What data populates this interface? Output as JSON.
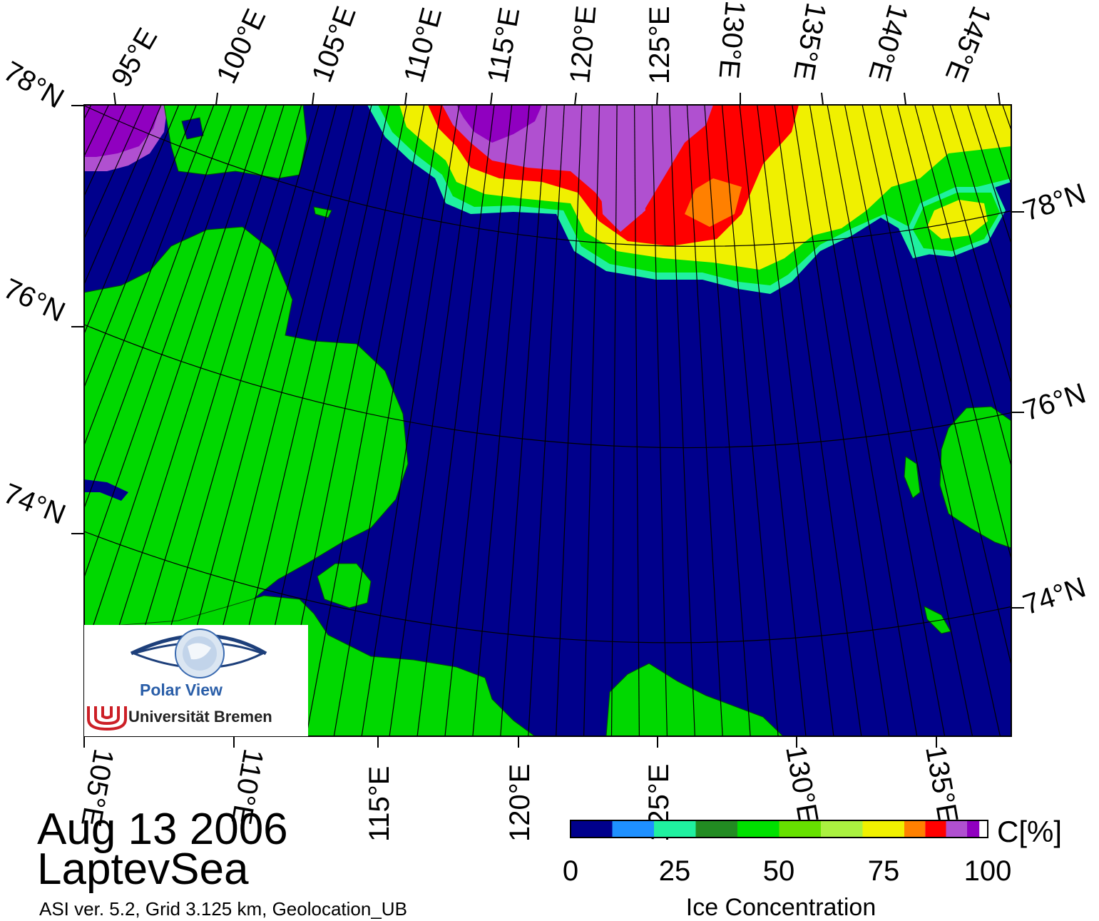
{
  "map": {
    "top_lon_labels": [
      "95°E",
      "100°E",
      "105°E",
      "110°E",
      "115°E",
      "120°E",
      "125°E",
      "130°E",
      "135°E",
      "140°E",
      "145°E"
    ],
    "bottom_lon_labels": [
      "105°E",
      "110°E",
      "115°E",
      "120°E",
      "125°E",
      "130°E",
      "135°E"
    ],
    "left_lat_labels": [
      "78°N",
      "76°N",
      "74°N"
    ],
    "right_lat_labels": [
      "78°N",
      "76°N",
      "74°N"
    ],
    "colors": {
      "ocean": "#00008c",
      "land": "#00d800",
      "grid": "#000000"
    }
  },
  "annotation": {
    "date": "Aug 13 2006",
    "region": "LaptevSea",
    "info": "ASI ver. 5.2,  Grid 3.125 km, Geolocation_UB"
  },
  "logo": {
    "title": "Polar View",
    "subtitle": "Universität Bremen",
    "icon": "eye-globe-icon"
  },
  "colorbar": {
    "title": "Ice Concentration",
    "unit": "C[%]",
    "ticks": [
      "0",
      "25",
      "50",
      "75",
      "100"
    ],
    "range": [
      0,
      100
    ],
    "bins": [
      {
        "from": 0,
        "to": 10,
        "color": "#00008c"
      },
      {
        "from": 10,
        "to": 20,
        "color": "#1e90ff"
      },
      {
        "from": 20,
        "to": 30,
        "color": "#20f0a0"
      },
      {
        "from": 30,
        "to": 40,
        "color": "#228b22"
      },
      {
        "from": 40,
        "to": 50,
        "color": "#00e000"
      },
      {
        "from": 50,
        "to": 60,
        "color": "#66e000"
      },
      {
        "from": 60,
        "to": 70,
        "color": "#aaf040"
      },
      {
        "from": 70,
        "to": 80,
        "color": "#f0f000"
      },
      {
        "from": 80,
        "to": 85,
        "color": "#ff8000"
      },
      {
        "from": 85,
        "to": 90,
        "color": "#ff0000"
      },
      {
        "from": 90,
        "to": 95,
        "color": "#b050d0"
      },
      {
        "from": 95,
        "to": 98,
        "color": "#9000c0"
      },
      {
        "from": 98,
        "to": 100,
        "color": "#ffffff"
      }
    ]
  }
}
